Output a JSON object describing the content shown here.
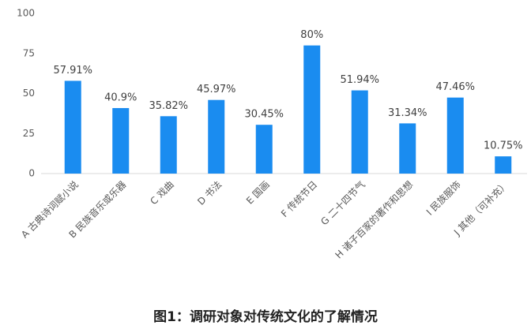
{
  "chart_data": {
    "type": "bar",
    "caption": "图1：调研对象对传统文化的了解情况",
    "categories": [
      "A 古典诗词赋小说",
      "B 民族音乐或乐器",
      "C 戏曲",
      "D 书法",
      "E 国画",
      "F 传统节日",
      "G 二十四节气",
      "H 诸子百家的著作和思想",
      "I 民族服饰",
      "J 其他（可补充）"
    ],
    "values": [
      57.91,
      40.9,
      35.82,
      45.97,
      30.45,
      80,
      51.94,
      31.34,
      47.46,
      10.75
    ],
    "value_labels": [
      "57.91%",
      "40.9%",
      "35.82%",
      "45.97%",
      "30.45%",
      "80%",
      "51.94%",
      "31.34%",
      "47.46%",
      "10.75%"
    ],
    "color": "#1a8cf0",
    "ylim": [
      0,
      100
    ],
    "yticks": [
      0,
      25,
      50,
      75,
      100
    ],
    "grid": false
  }
}
